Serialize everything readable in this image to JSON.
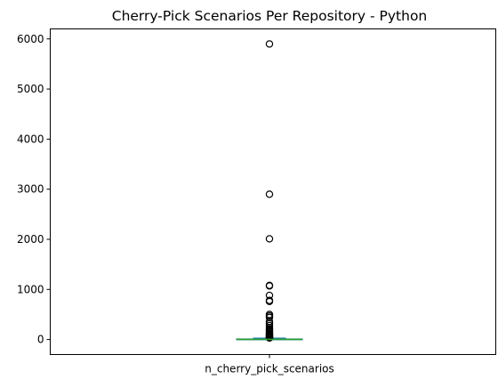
{
  "chart_data": {
    "type": "box",
    "title": "Cherry-Pick Scenarios Per Repository - Python",
    "categories": [
      "n_cherry_pick_scenarios"
    ],
    "xlabel": "",
    "ylabel": "",
    "ylim": [
      -300,
      6200
    ],
    "yticks": [
      0,
      1000,
      2000,
      3000,
      4000,
      5000,
      6000
    ],
    "grid": false,
    "box": {
      "whisker_low": 0,
      "q1": 1,
      "median": 3,
      "q3": 12,
      "whisker_high": 28
    },
    "outliers": [
      5900,
      2900,
      2010,
      1080,
      1070,
      880,
      780,
      760,
      500,
      470,
      440,
      360,
      320,
      280,
      240,
      210,
      190,
      170,
      150,
      130,
      115,
      100,
      90,
      80,
      70,
      60,
      50,
      45,
      40,
      35,
      30
    ],
    "colors": {
      "median": "#2ca02c",
      "box": "#1f77b4",
      "outlier_edge": "#000000"
    }
  }
}
